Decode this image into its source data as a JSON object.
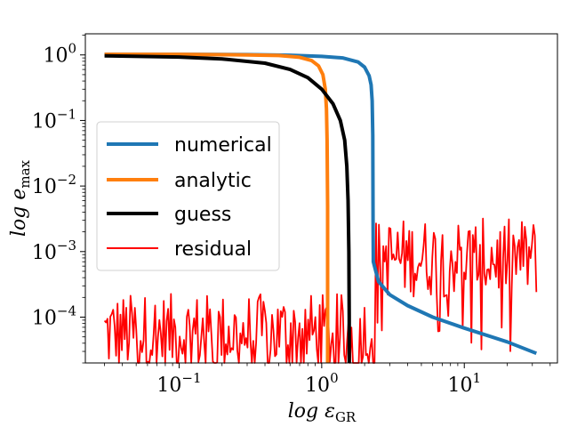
{
  "chart_data": {
    "type": "line",
    "xlabel": "log ε",
    "xlabel_sub": "GR",
    "ylabel": "log e",
    "ylabel_sub": "max",
    "x_scale": "log",
    "y_scale": "log",
    "xlim": [
      0.022,
      45
    ],
    "ylim": [
      2e-05,
      2.1
    ],
    "grid": false,
    "legend_position": "center-left",
    "x_ticks": [
      {
        "base": "10",
        "exp": "−1",
        "value": 0.1
      },
      {
        "base": "10",
        "exp": "0",
        "value": 1
      },
      {
        "base": "10",
        "exp": "1",
        "value": 10
      }
    ],
    "y_ticks": [
      {
        "base": "10",
        "exp": "0",
        "value": 1
      },
      {
        "base": "10",
        "exp": "−1",
        "value": 0.1
      },
      {
        "base": "10",
        "exp": "−2",
        "value": 0.01
      },
      {
        "base": "10",
        "exp": "−3",
        "value": 0.001
      },
      {
        "base": "10",
        "exp": "−4",
        "value": 0.0001
      }
    ],
    "series": [
      {
        "name": "numerical",
        "color": "#1f77b4",
        "width": 4,
        "x": [
          0.03,
          0.1,
          0.3,
          0.6,
          1.0,
          1.4,
          1.8,
          2.0,
          2.15,
          2.22,
          2.26,
          2.28,
          2.29,
          2.3,
          2.5,
          3,
          4,
          6,
          10,
          20,
          32
        ],
        "y": [
          1.02,
          1.02,
          1.01,
          0.99,
          0.95,
          0.9,
          0.78,
          0.65,
          0.48,
          0.35,
          0.2,
          0.06,
          0.003,
          0.0007,
          0.00035,
          0.00022,
          0.00015,
          0.0001,
          6.8e-05,
          4.2e-05,
          2.8e-05
        ]
      },
      {
        "name": "analytic",
        "color": "#ff7f0e",
        "width": 4,
        "x": [
          0.03,
          0.1,
          0.3,
          0.5,
          0.7,
          0.85,
          0.95,
          1.02,
          1.06,
          1.08,
          1.09,
          1.1,
          1.1
        ],
        "y": [
          1.02,
          1.02,
          1.0,
          0.98,
          0.92,
          0.82,
          0.68,
          0.5,
          0.3,
          0.15,
          0.05,
          0.005,
          2e-05
        ]
      },
      {
        "name": "guess",
        "color": "#000000",
        "width": 4,
        "x": [
          0.03,
          0.1,
          0.2,
          0.4,
          0.6,
          0.8,
          1.0,
          1.2,
          1.35,
          1.45,
          1.5,
          1.53,
          1.55,
          1.56,
          1.56
        ],
        "y": [
          0.97,
          0.93,
          0.87,
          0.75,
          0.6,
          0.45,
          0.3,
          0.18,
          0.1,
          0.05,
          0.02,
          0.006,
          0.001,
          0.0001,
          2e-05
        ]
      },
      {
        "name": "residual",
        "color": "#ff0000",
        "width": 1.8,
        "noisy": true,
        "x_start": 0.03,
        "x_end": 32,
        "points": 300,
        "level_low": 0.0001,
        "level_high": 0.0014,
        "jump_at": 2.35
      }
    ]
  }
}
